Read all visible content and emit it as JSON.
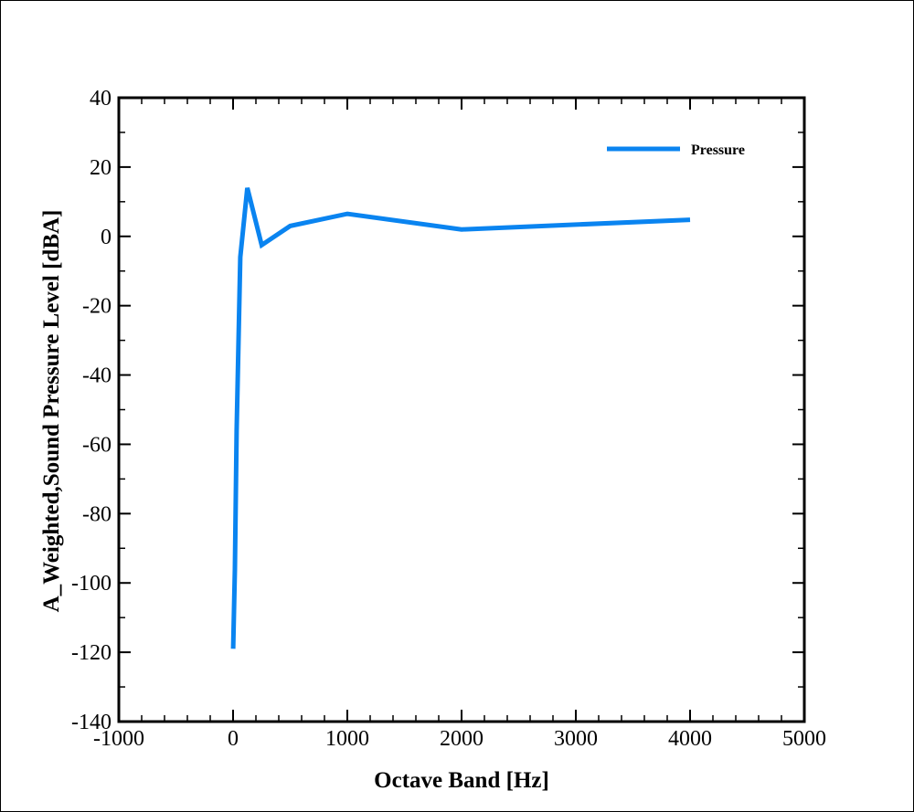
{
  "chart_data": {
    "type": "line",
    "xlabel": "Octave Band [Hz]",
    "ylabel": "A_Weighted,Sound Pressure Level [dBA]",
    "xlim": [
      -1000,
      5000
    ],
    "ylim": [
      -140,
      40
    ],
    "x_ticks": [
      -1000,
      0,
      1000,
      2000,
      3000,
      4000,
      5000
    ],
    "y_ticks": [
      -140,
      -120,
      -100,
      -80,
      -60,
      -40,
      -20,
      0,
      20,
      40
    ],
    "x_minor_step": 200,
    "y_minor_step": 10,
    "legend_position": "top-right",
    "series": [
      {
        "name": "Pressure",
        "color": "#0a84f0",
        "x": [
          1,
          16,
          31.5,
          63,
          125,
          250,
          500,
          1000,
          2000,
          4000
        ],
        "y": [
          -119,
          -96,
          -56,
          -6,
          14,
          -2.5,
          3,
          6.5,
          2,
          4.8
        ]
      }
    ]
  }
}
